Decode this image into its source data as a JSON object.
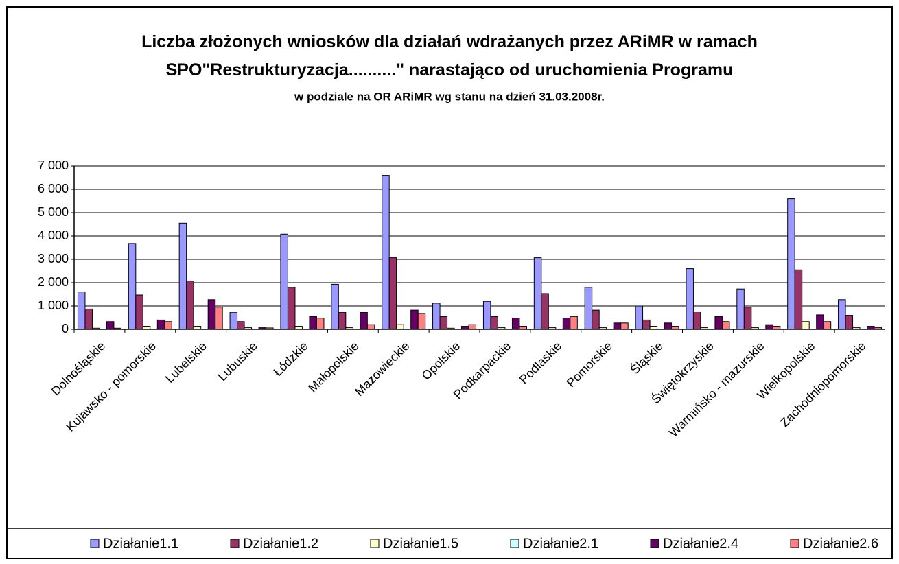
{
  "chart_data": {
    "type": "bar",
    "title": "Liczba złożonych wniosków dla działań wdrażanych przez ARiMR w ramach\nSPO\"Restrukturyzacja..........\" narastająco od uruchomienia Programu",
    "subtitle": "w podziale na OR ARiMR wg stanu na dzień 31.03.2008r.",
    "categories": [
      "Dolnośląskie",
      "Kujawsko - pomorskie",
      "Lubelskie",
      "Lubuskie",
      "Łódzkie",
      "Małopolskie",
      "Mazowieckie",
      "Opolskie",
      "Podkarpackie",
      "Podlaskie",
      "Pomorskie",
      "Śląskie",
      "Świętokrzyskie",
      "Warmińsko - mazurskie",
      "Wielkopolskie",
      "Zachodniopomorskie"
    ],
    "series": [
      {
        "name": "Działanie1.1",
        "color": "#9999ff",
        "values": [
          1600,
          3680,
          4550,
          730,
          4080,
          1930,
          6600,
          1120,
          1200,
          3070,
          1800,
          1000,
          2600,
          1730,
          5600,
          1270
        ]
      },
      {
        "name": "Działanie1.2",
        "color": "#993366",
        "values": [
          870,
          1470,
          2070,
          330,
          1800,
          730,
          3070,
          550,
          550,
          1530,
          820,
          400,
          750,
          950,
          2550,
          600
        ]
      },
      {
        "name": "Działanie1.5",
        "color": "#ffffcc",
        "values": [
          50,
          130,
          130,
          70,
          130,
          70,
          200,
          50,
          70,
          70,
          70,
          130,
          70,
          70,
          330,
          70
        ]
      },
      {
        "name": "Działanie2.1",
        "color": "#ccffff",
        "values": [
          0,
          0,
          0,
          0,
          0,
          0,
          0,
          0,
          0,
          0,
          0,
          0,
          0,
          0,
          0,
          0
        ]
      },
      {
        "name": "Działanie2.4",
        "color": "#660066",
        "values": [
          330,
          400,
          1270,
          70,
          550,
          730,
          820,
          130,
          480,
          480,
          270,
          270,
          550,
          200,
          620,
          130
        ]
      },
      {
        "name": "Działanie2.6",
        "color": "#ff8080",
        "values": [
          50,
          330,
          950,
          60,
          480,
          200,
          680,
          200,
          130,
          550,
          270,
          130,
          330,
          130,
          330,
          70
        ]
      }
    ],
    "ylim": [
      0,
      7000
    ],
    "yticks": [
      0,
      {
        "value": 1000,
        "label": "1 000"
      },
      {
        "value": 2000,
        "label": "2 000"
      },
      {
        "value": 3000,
        "label": "3 000"
      },
      {
        "value": 4000,
        "label": "4 000"
      },
      {
        "value": 5000,
        "label": "5 000"
      },
      {
        "value": 6000,
        "label": "6 000"
      },
      {
        "value": 7000,
        "label": "7 000"
      }
    ],
    "grid": true,
    "legend": "bottom"
  }
}
